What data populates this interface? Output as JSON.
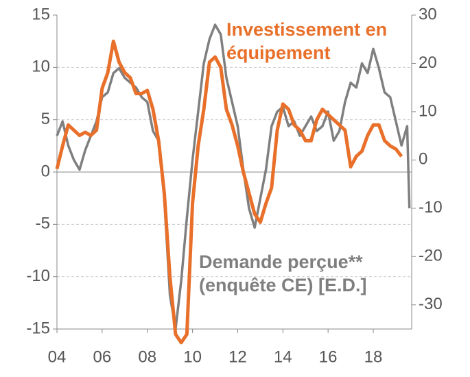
{
  "chart_data": {
    "type": "line",
    "xlim": [
      2004,
      2019.7
    ],
    "xticks": [
      {
        "value": 2004,
        "label": "04"
      },
      {
        "value": 2006,
        "label": "06"
      },
      {
        "value": 2008,
        "label": "08"
      },
      {
        "value": 2010,
        "label": "10"
      },
      {
        "value": 2012,
        "label": "12"
      },
      {
        "value": 2014,
        "label": "14"
      },
      {
        "value": 2016,
        "label": "16"
      },
      {
        "value": 2018,
        "label": "18"
      }
    ],
    "ylim": [
      -15,
      15
    ],
    "yticks": [
      -15,
      -10,
      -5,
      0,
      5,
      10,
      15
    ],
    "y2lim": [
      -35,
      30
    ],
    "y2ticks": [
      -30,
      -20,
      -10,
      0,
      10,
      20,
      30
    ],
    "grid": true,
    "series": [
      {
        "name": "Investissement en équipement",
        "color": "#e8702a",
        "axis": "y",
        "x": [
          2004,
          2004.25,
          2004.5,
          2004.75,
          2005,
          2005.25,
          2005.5,
          2005.75,
          2006,
          2006.25,
          2006.5,
          2006.75,
          2007,
          2007.25,
          2007.5,
          2007.75,
          2008,
          2008.25,
          2008.5,
          2008.75,
          2009,
          2009.25,
          2009.5,
          2009.75,
          2010,
          2010.25,
          2010.5,
          2010.75,
          2011,
          2011.25,
          2011.5,
          2011.75,
          2012,
          2012.25,
          2012.5,
          2012.75,
          2013,
          2013.25,
          2013.5,
          2013.75,
          2014,
          2014.25,
          2014.5,
          2014.75,
          2015,
          2015.25,
          2015.5,
          2015.75,
          2016,
          2016.25,
          2016.5,
          2016.75,
          2017,
          2017.25,
          2017.5,
          2017.75,
          2018,
          2018.25,
          2018.5,
          2018.75,
          2019,
          2019.25
        ],
        "values": [
          0.3,
          2.5,
          4.5,
          4.0,
          3.5,
          3.8,
          3.5,
          4.0,
          8.0,
          9.5,
          12.5,
          10.5,
          9.5,
          9.0,
          7.5,
          7.5,
          7.8,
          6.0,
          3.0,
          -2,
          -10,
          -15.5,
          -16.3,
          -15.5,
          -3,
          2.5,
          6,
          10.5,
          11,
          10,
          6,
          4.5,
          2.5,
          0,
          -2,
          -4,
          -4.8,
          -3,
          -1.5,
          4,
          6.5,
          6,
          4.5,
          4,
          3,
          3,
          5,
          6,
          5.5,
          5,
          4.5,
          4,
          0.5,
          1.5,
          2,
          3.5,
          4.5,
          4.5,
          3,
          2.5,
          2.2,
          1.5
        ]
      },
      {
        "name": "Demande perçue** (enquête CE) [E.D.]",
        "color": "#7f7f7f",
        "axis": "y2",
        "x": [
          2004,
          2004.25,
          2004.5,
          2004.75,
          2005,
          2005.25,
          2005.5,
          2005.75,
          2006,
          2006.25,
          2006.5,
          2006.75,
          2007,
          2007.25,
          2007.5,
          2007.75,
          2008,
          2008.25,
          2008.5,
          2008.75,
          2009,
          2009.25,
          2009.5,
          2009.75,
          2010,
          2010.25,
          2010.5,
          2010.75,
          2011,
          2011.25,
          2011.5,
          2011.75,
          2012,
          2012.25,
          2012.5,
          2012.75,
          2013,
          2013.25,
          2013.5,
          2013.75,
          2014,
          2014.25,
          2014.5,
          2014.75,
          2015,
          2015.25,
          2015.5,
          2015.75,
          2016,
          2016.25,
          2016.5,
          2016.75,
          2017,
          2017.25,
          2017.5,
          2017.75,
          2018,
          2018.25,
          2018.5,
          2018.75,
          2019,
          2019.25,
          2019.5,
          2019.6
        ],
        "values": [
          5,
          8,
          3,
          0,
          -2,
          2,
          5,
          8,
          13,
          14,
          18,
          19,
          17,
          16,
          15,
          13,
          12,
          6,
          4,
          -8,
          -28,
          -35,
          -25,
          -12,
          0,
          10,
          20,
          25,
          28,
          26,
          17,
          12,
          7,
          -2,
          -10,
          -14,
          -8,
          -2,
          7,
          10,
          11,
          7,
          8,
          5,
          7,
          9,
          6,
          7,
          10,
          4,
          6,
          12,
          16,
          15,
          20,
          18,
          23,
          19,
          14,
          13,
          8,
          3,
          7,
          -10
        ]
      }
    ]
  }
}
